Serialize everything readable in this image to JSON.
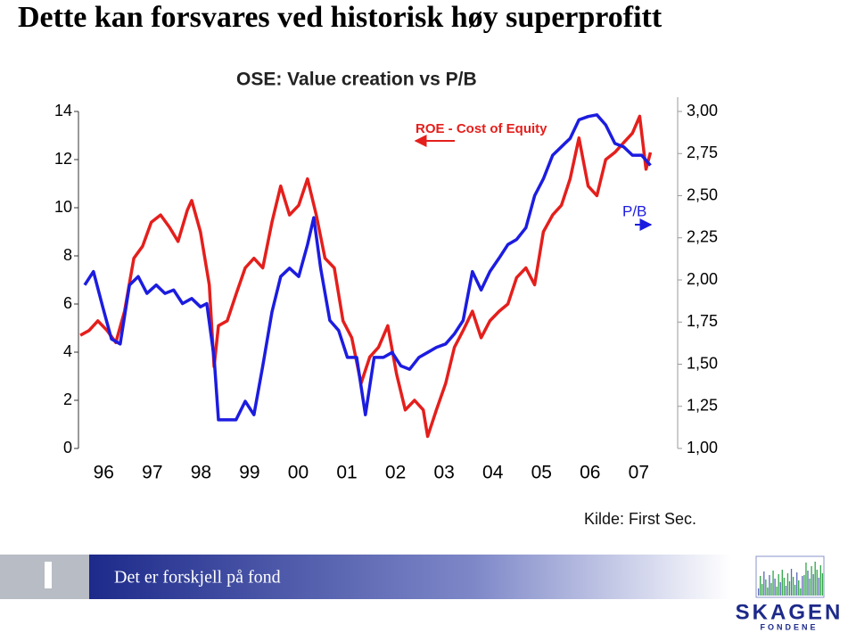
{
  "title": "Dette kan forsvares ved historisk høy  superprofitt",
  "chart_data": {
    "type": "line",
    "title": "OSE: Value creation vs P/B",
    "xlim": [
      1996,
      2008.3
    ],
    "xticks": [
      {
        "value": 1996.5,
        "label": "96"
      },
      {
        "value": 1997.5,
        "label": "97"
      },
      {
        "value": 1998.5,
        "label": "98"
      },
      {
        "value": 1999.5,
        "label": "99"
      },
      {
        "value": 2000.5,
        "label": "00"
      },
      {
        "value": 2001.5,
        "label": "01"
      },
      {
        "value": 2002.5,
        "label": "02"
      },
      {
        "value": 2003.5,
        "label": "03"
      },
      {
        "value": 2004.5,
        "label": "04"
      },
      {
        "value": 2005.5,
        "label": "05"
      },
      {
        "value": 2006.5,
        "label": "06"
      },
      {
        "value": 2007.5,
        "label": "07"
      }
    ],
    "ylim": [
      0,
      14
    ],
    "yticks": [
      0,
      2,
      4,
      6,
      8,
      10,
      12,
      14
    ],
    "y2lim": [
      1,
      3
    ],
    "y2ticks": [
      {
        "value": 1,
        "label": "1,00"
      },
      {
        "value": 1.25,
        "label": "1,25"
      },
      {
        "value": 1.5,
        "label": "1,50"
      },
      {
        "value": 1.75,
        "label": "1,75"
      },
      {
        "value": 2,
        "label": "2,00"
      },
      {
        "value": 2.25,
        "label": "2,25"
      },
      {
        "value": 2.5,
        "label": "2,50"
      },
      {
        "value": 2.75,
        "label": "2,75"
      },
      {
        "value": 3,
        "label": "3,00"
      }
    ],
    "series": [
      {
        "name": "ROE - Cost of Equity",
        "color": "#e41f1c",
        "axis": "y",
        "x": [
          1996.02,
          1996.2,
          1996.38,
          1996.57,
          1996.75,
          1996.93,
          1997.12,
          1997.3,
          1997.48,
          1997.67,
          1997.85,
          1998.03,
          1998.22,
          1998.31,
          1998.49,
          1998.67,
          1998.77,
          1998.86,
          1999.04,
          1999.22,
          1999.41,
          1999.59,
          1999.77,
          1999.96,
          2000.14,
          2000.32,
          2000.51,
          2000.69,
          2000.87,
          2001.05,
          2001.24,
          2001.42,
          2001.6,
          2001.79,
          2001.97,
          2002.15,
          2002.34,
          2002.52,
          2002.7,
          2002.89,
          2003.07,
          2003.16,
          2003.34,
          2003.53,
          2003.71,
          2003.89,
          2004.08,
          2004.26,
          2004.44,
          2004.63,
          2004.81,
          2004.99,
          2005.18,
          2005.36,
          2005.54,
          2005.73,
          2005.91,
          2006.09,
          2006.27,
          2006.46,
          2006.64,
          2006.82,
          2007.01,
          2007.19,
          2007.37,
          2007.52,
          2007.65,
          2007.74
        ],
        "values": [
          4.7,
          4.9,
          5.3,
          4.9,
          4.4,
          5.7,
          7.9,
          8.4,
          9.4,
          9.7,
          9.2,
          8.6,
          9.9,
          10.3,
          9.0,
          6.8,
          3.4,
          5.1,
          5.3,
          6.4,
          7.5,
          7.9,
          7.5,
          9.4,
          10.9,
          9.7,
          10.1,
          11.2,
          9.7,
          7.9,
          7.5,
          5.3,
          4.6,
          2.7,
          3.8,
          4.2,
          5.1,
          3.1,
          1.6,
          2.0,
          1.6,
          0.5,
          1.6,
          2.7,
          4.2,
          4.9,
          5.7,
          4.6,
          5.3,
          5.7,
          6.0,
          7.1,
          7.5,
          6.8,
          9.0,
          9.7,
          10.1,
          11.2,
          12.9,
          10.9,
          10.5,
          12.0,
          12.3,
          12.7,
          13.1,
          13.8,
          11.6,
          12.3
        ]
      },
      {
        "name": "P/B",
        "color": "#1c1ce0",
        "axis": "y2",
        "x": [
          1996.11,
          1996.29,
          1996.48,
          1996.66,
          1996.84,
          1997.03,
          1997.21,
          1997.39,
          1997.58,
          1997.76,
          1997.94,
          1998.12,
          1998.31,
          1998.49,
          1998.62,
          1998.77,
          1998.86,
          1999.04,
          1999.22,
          1999.41,
          1999.59,
          1999.77,
          1999.96,
          2000.14,
          2000.32,
          2000.51,
          2000.69,
          2000.82,
          2000.96,
          2001.15,
          2001.33,
          2001.51,
          2001.7,
          2001.88,
          2002.06,
          2002.25,
          2002.43,
          2002.61,
          2002.79,
          2002.98,
          2003.16,
          2003.34,
          2003.53,
          2003.71,
          2003.89,
          2004.08,
          2004.26,
          2004.44,
          2004.63,
          2004.81,
          2004.99,
          2005.18,
          2005.36,
          2005.54,
          2005.73,
          2005.91,
          2006.09,
          2006.27,
          2006.46,
          2006.64,
          2006.82,
          2007.01,
          2007.19,
          2007.37,
          2007.56,
          2007.74
        ],
        "values": [
          1.97,
          2.05,
          1.84,
          1.65,
          1.62,
          1.97,
          2.02,
          1.92,
          1.97,
          1.92,
          1.94,
          1.86,
          1.89,
          1.84,
          1.86,
          1.54,
          1.17,
          1.17,
          1.17,
          1.28,
          1.2,
          1.49,
          1.81,
          2.02,
          2.07,
          2.02,
          2.21,
          2.37,
          2.07,
          1.76,
          1.7,
          1.54,
          1.54,
          1.2,
          1.54,
          1.54,
          1.57,
          1.49,
          1.47,
          1.54,
          1.57,
          1.6,
          1.62,
          1.68,
          1.76,
          2.05,
          1.94,
          2.05,
          2.13,
          2.21,
          2.24,
          2.31,
          2.5,
          2.6,
          2.74,
          2.79,
          2.84,
          2.95,
          2.97,
          2.98,
          2.92,
          2.81,
          2.79,
          2.74,
          2.74,
          2.68
        ]
      }
    ]
  },
  "source": "Kilde: First Sec.",
  "footer": {
    "tagline": "Det er forskjell på fond",
    "logo": "SKAGEN",
    "logo_sub": "FONDENE"
  }
}
